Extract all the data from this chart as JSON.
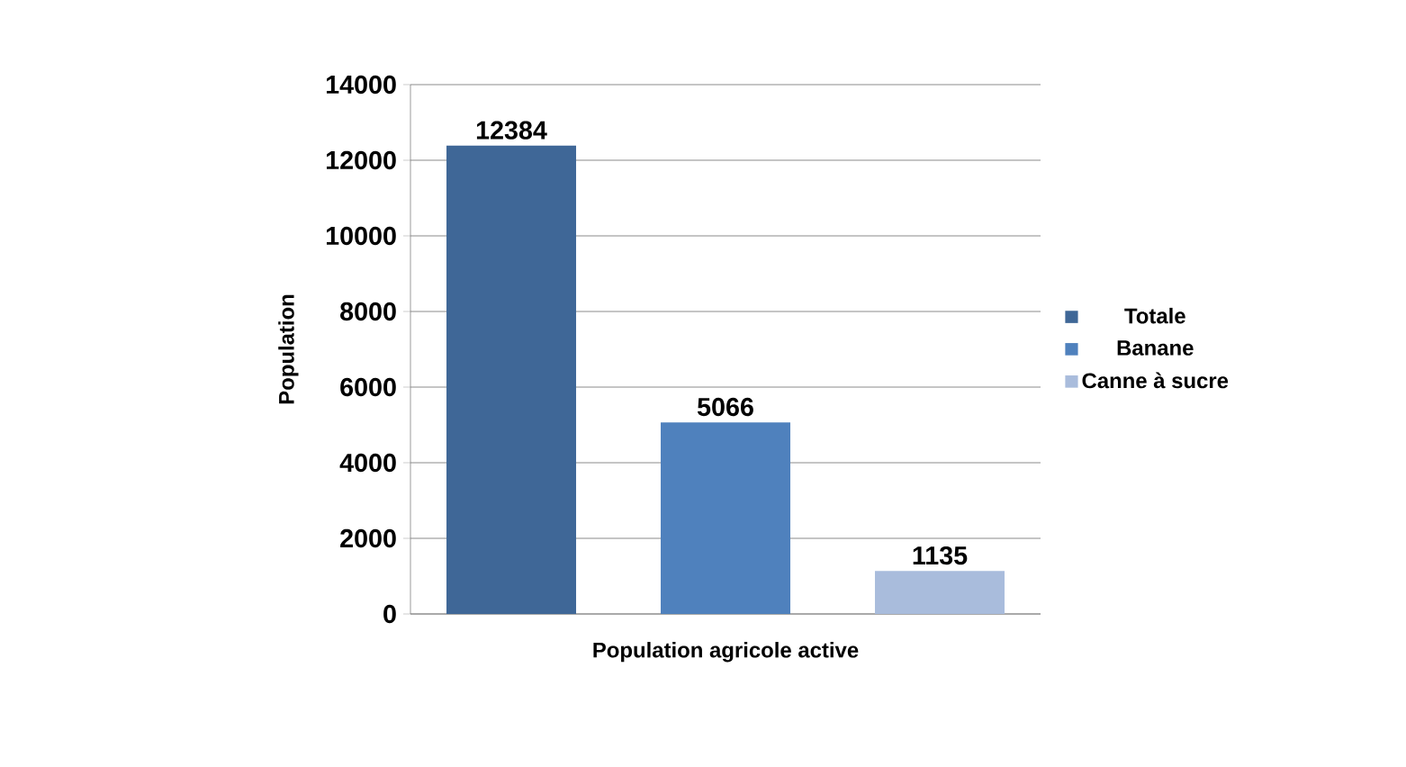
{
  "chart_data": {
    "type": "bar",
    "ylabel": "Population",
    "categories": [
      "Population agricole active"
    ],
    "series": [
      {
        "name": "Totale",
        "color": "#3f6797",
        "values": [
          12384
        ]
      },
      {
        "name": "Banane",
        "color": "#4f81bd",
        "values": [
          5066
        ]
      },
      {
        "name": "Canne à sucre",
        "color": "#a9bcdc",
        "values": [
          1135
        ]
      }
    ],
    "ylim": [
      0,
      14000
    ],
    "yticks": [
      0,
      2000,
      4000,
      6000,
      8000,
      10000,
      12000,
      14000
    ],
    "grid": "y",
    "legend": "right",
    "data_labels": true
  }
}
